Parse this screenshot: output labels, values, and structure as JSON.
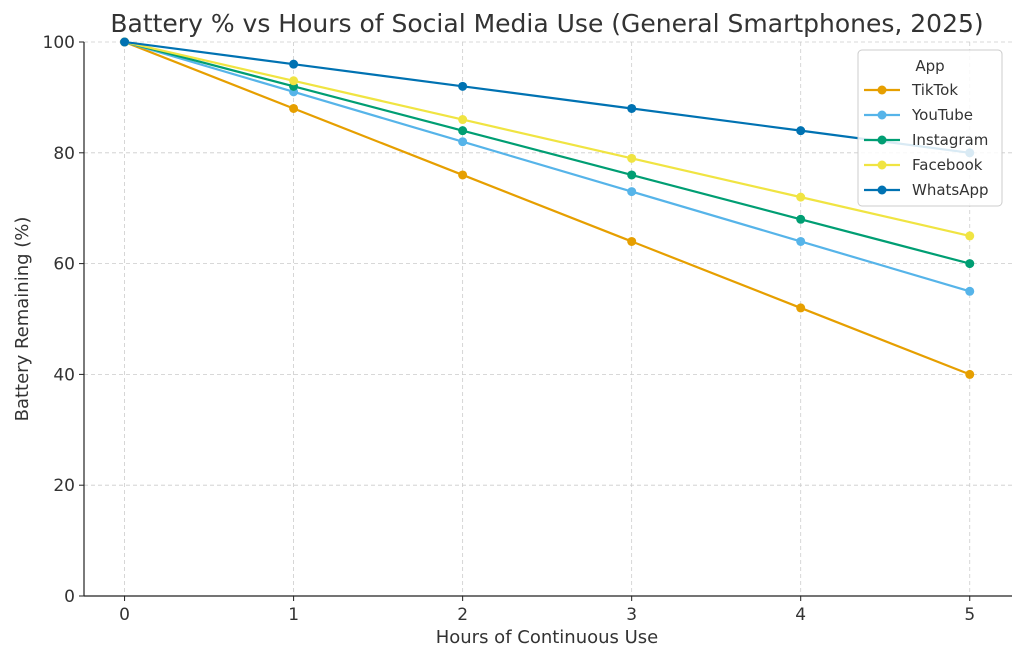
{
  "chart_data": {
    "type": "line",
    "title": "Battery % vs Hours of Social Media Use (General Smartphones, 2025)",
    "xlabel": "Hours of Continuous Use",
    "ylabel": "Battery Remaining (%)",
    "x": [
      0,
      1,
      2,
      3,
      4,
      5
    ],
    "xticks": [
      "0",
      "1",
      "2",
      "3",
      "4",
      "5"
    ],
    "yticks": [
      "0",
      "20",
      "40",
      "60",
      "80",
      "100"
    ],
    "xlim": [
      -0.24,
      5.25
    ],
    "ylim": [
      0,
      100
    ],
    "grid": true,
    "legend": {
      "title": "App",
      "placement": "top-right"
    },
    "series": [
      {
        "name": "TikTok",
        "color": "#E69F00",
        "values": [
          100,
          88,
          76,
          64,
          52,
          40
        ]
      },
      {
        "name": "YouTube",
        "color": "#56B4E9",
        "values": [
          100,
          91,
          82,
          73,
          64,
          55
        ]
      },
      {
        "name": "Instagram",
        "color": "#009E73",
        "values": [
          100,
          92,
          84,
          76,
          68,
          60
        ]
      },
      {
        "name": "Facebook",
        "color": "#F0E442",
        "values": [
          100,
          93,
          86,
          79,
          72,
          65
        ]
      },
      {
        "name": "WhatsApp",
        "color": "#0072B2",
        "values": [
          100,
          96,
          92,
          88,
          84,
          80
        ]
      }
    ]
  }
}
